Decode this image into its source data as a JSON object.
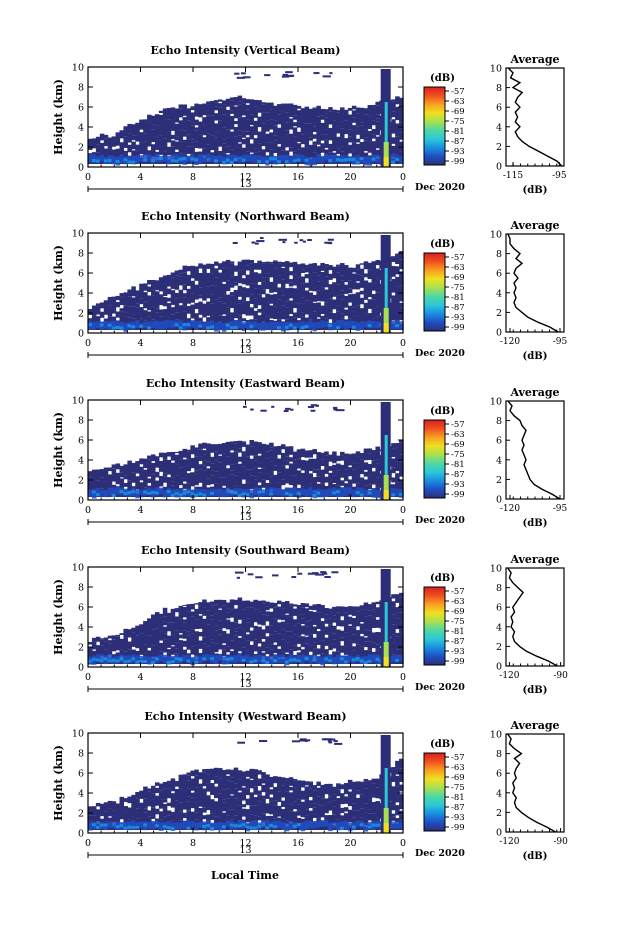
{
  "figure": {
    "time_axis_label": "Local Time",
    "date_label": "Dec 2020",
    "day_label": "13"
  },
  "colors": {
    "background_echo": "#2c2f78",
    "colorbar_stops": [
      "#2c2f78",
      "#1e4fc4",
      "#1a8fe0",
      "#2cc8d8",
      "#4fd8a0",
      "#a8e050",
      "#f0e020",
      "#f8a020",
      "#f05020",
      "#d82020"
    ]
  },
  "chart_data": [
    {
      "type": "heatmap",
      "title": "Echo Intensity (Vertical Beam)",
      "ylabel": "Height (km)",
      "x_ticks": [
        "0",
        "4",
        "8",
        "12",
        "16",
        "20",
        "0"
      ],
      "y_ticks": [
        "0",
        "2",
        "4",
        "6",
        "8",
        "10"
      ],
      "xlim": [
        0,
        24
      ],
      "ylim": [
        0,
        10
      ],
      "colorbar": {
        "unit": "(dB)",
        "ticks": [
          "-57",
          "-63",
          "-69",
          "-75",
          "-81",
          "-87",
          "-93",
          "-99"
        ]
      },
      "echo_top_km": [
        2.8,
        3.2,
        4.5,
        5.5,
        6.0,
        6.5,
        6.8,
        6.5,
        6.2,
        6.0,
        5.6,
        5.8,
        6.3,
        7.0
      ],
      "profile": {
        "title": "Average",
        "xlabel": "(dB)",
        "x_ticks": [
          "-115",
          "-95"
        ],
        "xlim": [
          -118,
          -93
        ],
        "heights": [
          0,
          0.5,
          1,
          1.5,
          2,
          2.5,
          3,
          3.5,
          4,
          4.5,
          5,
          5.5,
          6,
          6.5,
          7,
          7.5,
          8,
          8.5,
          9,
          9.5,
          10
        ],
        "values": [
          -94,
          -96,
          -100,
          -104,
          -108,
          -111,
          -113,
          -114,
          -112,
          -114,
          -113,
          -114,
          -112,
          -114,
          -113,
          -111,
          -115,
          -112,
          -116,
          -115,
          -117
        ]
      }
    },
    {
      "type": "heatmap",
      "title": "Echo Intensity (Northward Beam)",
      "ylabel": "Height (km)",
      "x_ticks": [
        "0",
        "4",
        "8",
        "12",
        "16",
        "20",
        "0"
      ],
      "y_ticks": [
        "0",
        "2",
        "4",
        "6",
        "8",
        "10"
      ],
      "xlim": [
        0,
        24
      ],
      "ylim": [
        0,
        10
      ],
      "colorbar": {
        "unit": "(dB)",
        "ticks": [
          "-57",
          "-63",
          "-69",
          "-75",
          "-81",
          "-87",
          "-93",
          "-99"
        ]
      },
      "echo_top_km": [
        2.5,
        3.5,
        4.5,
        5.5,
        6.5,
        6.8,
        7.0,
        7.0,
        7.0,
        6.8,
        6.6,
        6.8,
        7.2,
        8.0
      ],
      "profile": {
        "title": "Average",
        "xlabel": "(dB)",
        "x_ticks": [
          "-120",
          "-95"
        ],
        "xlim": [
          -122,
          -93
        ],
        "heights": [
          0,
          0.5,
          1,
          1.5,
          2,
          2.5,
          3,
          3.5,
          4,
          4.5,
          5,
          5.5,
          6,
          6.5,
          7,
          7.5,
          8,
          8.5,
          9,
          9.5,
          10
        ],
        "values": [
          -96,
          -100,
          -106,
          -111,
          -114,
          -117,
          -118,
          -117,
          -118,
          -117,
          -118,
          -116,
          -118,
          -117,
          -114,
          -117,
          -115,
          -118,
          -120,
          -120,
          -121
        ]
      }
    },
    {
      "type": "heatmap",
      "title": "Echo Intensity (Eastward Beam)",
      "ylabel": "Height (km)",
      "x_ticks": [
        "0",
        "4",
        "8",
        "12",
        "16",
        "20",
        "0"
      ],
      "y_ticks": [
        "0",
        "2",
        "4",
        "6",
        "8",
        "10"
      ],
      "xlim": [
        0,
        24
      ],
      "ylim": [
        0,
        10
      ],
      "colorbar": {
        "unit": "(dB)",
        "ticks": [
          "-57",
          "-63",
          "-69",
          "-75",
          "-81",
          "-87",
          "-93",
          "-99"
        ]
      },
      "echo_top_km": [
        2.8,
        3.2,
        3.8,
        4.5,
        5.0,
        5.5,
        5.8,
        5.6,
        5.2,
        4.8,
        4.5,
        4.6,
        5.0,
        6.0
      ],
      "profile": {
        "title": "Average",
        "xlabel": "(dB)",
        "x_ticks": [
          "-120",
          "-95"
        ],
        "xlim": [
          -122,
          -93
        ],
        "heights": [
          0,
          0.5,
          1,
          1.5,
          2,
          2.5,
          3,
          3.5,
          4,
          4.5,
          5,
          5.5,
          6,
          6.5,
          7,
          7.5,
          8,
          8.5,
          9,
          9.5,
          10
        ],
        "values": [
          -95,
          -99,
          -104,
          -108,
          -110,
          -111,
          -112,
          -113,
          -112,
          -113,
          -114,
          -113,
          -114,
          -113,
          -112,
          -114,
          -115,
          -118,
          -120,
          -119,
          -121
        ]
      }
    },
    {
      "type": "heatmap",
      "title": "Echo Intensity (Southward Beam)",
      "ylabel": "Height (km)",
      "x_ticks": [
        "0",
        "4",
        "8",
        "12",
        "16",
        "20",
        "0"
      ],
      "y_ticks": [
        "0",
        "2",
        "4",
        "6",
        "8",
        "10"
      ],
      "xlim": [
        0,
        24
      ],
      "ylim": [
        0,
        10
      ],
      "colorbar": {
        "unit": "(dB)",
        "ticks": [
          "-57",
          "-63",
          "-69",
          "-75",
          "-81",
          "-87",
          "-93",
          "-99"
        ]
      },
      "echo_top_km": [
        2.5,
        3.0,
        4.0,
        5.5,
        6.2,
        6.5,
        6.6,
        6.5,
        6.3,
        6.0,
        5.8,
        6.0,
        6.5,
        7.5
      ],
      "profile": {
        "title": "Average",
        "xlabel": "(dB)",
        "x_ticks": [
          "-120",
          "-90"
        ],
        "xlim": [
          -122,
          -88
        ],
        "heights": [
          0,
          0.5,
          1,
          1.5,
          2,
          2.5,
          3,
          3.5,
          4,
          4.5,
          5,
          5.5,
          6,
          6.5,
          7,
          7.5,
          8,
          8.5,
          9,
          9.5,
          10
        ],
        "values": [
          -92,
          -97,
          -104,
          -110,
          -114,
          -117,
          -118,
          -117,
          -119,
          -118,
          -119,
          -117,
          -118,
          -116,
          -114,
          -112,
          -115,
          -118,
          -120,
          -119,
          -121
        ]
      }
    },
    {
      "type": "heatmap",
      "title": "Echo Intensity (Westward Beam)",
      "ylabel": "Height (km)",
      "x_ticks": [
        "0",
        "4",
        "8",
        "12",
        "16",
        "20",
        "0"
      ],
      "y_ticks": [
        "0",
        "2",
        "4",
        "6",
        "8",
        "10"
      ],
      "xlim": [
        0,
        24
      ],
      "ylim": [
        0,
        10
      ],
      "colorbar": {
        "unit": "(dB)",
        "ticks": [
          "-57",
          "-63",
          "-69",
          "-75",
          "-81",
          "-87",
          "-93",
          "-99"
        ]
      },
      "echo_top_km": [
        2.6,
        3.0,
        4.0,
        5.0,
        5.8,
        6.2,
        6.3,
        6.0,
        5.5,
        5.0,
        4.8,
        5.0,
        5.5,
        7.5
      ],
      "profile": {
        "title": "Average",
        "xlabel": "(dB)",
        "x_ticks": [
          "-120",
          "-90"
        ],
        "xlim": [
          -122,
          -88
        ],
        "heights": [
          0,
          0.5,
          1,
          1.5,
          2,
          2.5,
          3,
          3.5,
          4,
          4.5,
          5,
          5.5,
          6,
          6.5,
          7,
          7.5,
          8,
          8.5,
          9,
          9.5,
          10
        ],
        "values": [
          -93,
          -98,
          -104,
          -109,
          -113,
          -116,
          -117,
          -116,
          -118,
          -117,
          -118,
          -116,
          -117,
          -116,
          -114,
          -117,
          -113,
          -117,
          -120,
          -119,
          -121
        ]
      }
    }
  ]
}
